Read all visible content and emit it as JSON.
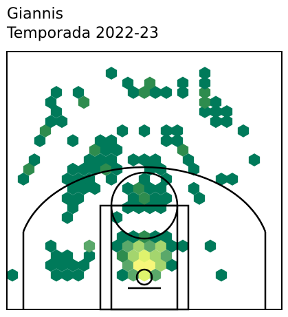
{
  "header": {
    "player": "Giannis",
    "season": "Temporada 2022-23"
  },
  "chart_data": {
    "type": "heatmap",
    "subtype": "hexbin shot chart",
    "title": "Giannis",
    "subtitle": "Temporada 2022-23",
    "xlim": [
      -250,
      250
    ],
    "ylim": [
      -47.5,
      422.5
    ],
    "axes": "hidden",
    "grid": false,
    "legend": "none",
    "colors": {
      "low": "#007a5a",
      "low_mid": "#2e8c4e",
      "mid": "#5aa86a",
      "high_mid": "#a4d56e",
      "high": "#dff36d",
      "max": "#f7f77a",
      "court_line": "#000000"
    },
    "levels": [
      "low",
      "low_mid",
      "mid",
      "high_mid",
      "high",
      "max"
    ],
    "bins": [
      {
        "x": -240,
        "y": 15,
        "level": 0
      },
      {
        "x": -160,
        "y": 15,
        "level": 0
      },
      {
        "x": -140,
        "y": 15,
        "level": 0
      },
      {
        "x": -120,
        "y": 15,
        "level": 0
      },
      {
        "x": -40,
        "y": 15,
        "level": 0
      },
      {
        "x": -20,
        "y": 15,
        "level": 2
      },
      {
        "x": 0,
        "y": 15,
        "level": 4
      },
      {
        "x": 20,
        "y": 15,
        "level": 2
      },
      {
        "x": 140,
        "y": 15,
        "level": 0
      },
      {
        "x": -170,
        "y": 33,
        "level": 0
      },
      {
        "x": -150,
        "y": 33,
        "level": 0
      },
      {
        "x": -130,
        "y": 33,
        "level": 0
      },
      {
        "x": -110,
        "y": 33,
        "level": 0
      },
      {
        "x": -30,
        "y": 33,
        "level": 2
      },
      {
        "x": -10,
        "y": 33,
        "level": 5
      },
      {
        "x": 10,
        "y": 33,
        "level": 5
      },
      {
        "x": 30,
        "y": 33,
        "level": 3
      },
      {
        "x": 50,
        "y": 33,
        "level": 0
      },
      {
        "x": -160,
        "y": 50,
        "level": 0
      },
      {
        "x": -140,
        "y": 50,
        "level": 0
      },
      {
        "x": -100,
        "y": 50,
        "level": 0
      },
      {
        "x": -40,
        "y": 50,
        "level": 1
      },
      {
        "x": -20,
        "y": 50,
        "level": 3
      },
      {
        "x": 0,
        "y": 50,
        "level": 4
      },
      {
        "x": 20,
        "y": 50,
        "level": 3
      },
      {
        "x": 40,
        "y": 50,
        "level": 2
      },
      {
        "x": -170,
        "y": 68,
        "level": 0
      },
      {
        "x": -100,
        "y": 68,
        "level": 2
      },
      {
        "x": -50,
        "y": 68,
        "level": 0
      },
      {
        "x": -30,
        "y": 68,
        "level": 2
      },
      {
        "x": -10,
        "y": 68,
        "level": 3
      },
      {
        "x": 10,
        "y": 68,
        "level": 2
      },
      {
        "x": 30,
        "y": 68,
        "level": 3
      },
      {
        "x": 50,
        "y": 68,
        "level": 0
      },
      {
        "x": 70,
        "y": 68,
        "level": 0
      },
      {
        "x": 120,
        "y": 68,
        "level": 0
      },
      {
        "x": -40,
        "y": 85,
        "level": 0
      },
      {
        "x": -20,
        "y": 85,
        "level": 0
      },
      {
        "x": 0,
        "y": 85,
        "level": 1
      },
      {
        "x": 20,
        "y": 85,
        "level": 0
      },
      {
        "x": 40,
        "y": 85,
        "level": 0
      },
      {
        "x": -140,
        "y": 120,
        "level": 0
      },
      {
        "x": -50,
        "y": 120,
        "level": 0
      },
      {
        "x": -130,
        "y": 138,
        "level": 0
      },
      {
        "x": -30,
        "y": 138,
        "level": 0
      },
      {
        "x": -10,
        "y": 138,
        "level": 0
      },
      {
        "x": 10,
        "y": 138,
        "level": 0
      },
      {
        "x": 30,
        "y": 138,
        "level": 0
      },
      {
        "x": -140,
        "y": 155,
        "level": 0
      },
      {
        "x": -120,
        "y": 155,
        "level": 0
      },
      {
        "x": -20,
        "y": 155,
        "level": 0
      },
      {
        "x": 0,
        "y": 155,
        "level": 1
      },
      {
        "x": 20,
        "y": 155,
        "level": 0
      },
      {
        "x": 40,
        "y": 155,
        "level": 0
      },
      {
        "x": 100,
        "y": 155,
        "level": 0
      },
      {
        "x": -130,
        "y": 173,
        "level": 0
      },
      {
        "x": -110,
        "y": 173,
        "level": 0
      },
      {
        "x": -90,
        "y": 173,
        "level": 0
      },
      {
        "x": -30,
        "y": 173,
        "level": 0
      },
      {
        "x": -10,
        "y": 173,
        "level": 1
      },
      {
        "x": 10,
        "y": 173,
        "level": 0
      },
      {
        "x": 30,
        "y": 173,
        "level": 0
      },
      {
        "x": 90,
        "y": 173,
        "level": 0
      },
      {
        "x": -220,
        "y": 190,
        "level": 0
      },
      {
        "x": -140,
        "y": 190,
        "level": 0
      },
      {
        "x": -120,
        "y": 190,
        "level": 0
      },
      {
        "x": -100,
        "y": 190,
        "level": 0
      },
      {
        "x": -60,
        "y": 190,
        "level": 0
      },
      {
        "x": 0,
        "y": 190,
        "level": 0
      },
      {
        "x": 40,
        "y": 190,
        "level": 0
      },
      {
        "x": 140,
        "y": 190,
        "level": 0
      },
      {
        "x": 160,
        "y": 190,
        "level": 0
      },
      {
        "x": -210,
        "y": 208,
        "level": 1
      },
      {
        "x": -130,
        "y": 208,
        "level": 0
      },
      {
        "x": -110,
        "y": 208,
        "level": 0
      },
      {
        "x": -90,
        "y": 208,
        "level": 0
      },
      {
        "x": -70,
        "y": 208,
        "level": 1
      },
      {
        "x": -50,
        "y": 208,
        "level": 0
      },
      {
        "x": 10,
        "y": 208,
        "level": 0
      },
      {
        "x": 30,
        "y": 208,
        "level": 0
      },
      {
        "x": 90,
        "y": 208,
        "level": 0
      },
      {
        "x": -200,
        "y": 225,
        "level": 0
      },
      {
        "x": -100,
        "y": 225,
        "level": 0
      },
      {
        "x": -80,
        "y": 225,
        "level": 0
      },
      {
        "x": -60,
        "y": 225,
        "level": 0
      },
      {
        "x": -20,
        "y": 225,
        "level": 0
      },
      {
        "x": 0,
        "y": 225,
        "level": 0
      },
      {
        "x": 20,
        "y": 225,
        "level": 0
      },
      {
        "x": 80,
        "y": 225,
        "level": 0
      },
      {
        "x": 200,
        "y": 225,
        "level": 0
      },
      {
        "x": -90,
        "y": 243,
        "level": 1
      },
      {
        "x": -70,
        "y": 243,
        "level": 0
      },
      {
        "x": -50,
        "y": 243,
        "level": 0
      },
      {
        "x": 70,
        "y": 243,
        "level": 1
      },
      {
        "x": -190,
        "y": 260,
        "level": 0
      },
      {
        "x": -130,
        "y": 260,
        "level": 0
      },
      {
        "x": -80,
        "y": 260,
        "level": 0
      },
      {
        "x": -60,
        "y": 260,
        "level": 0
      },
      {
        "x": 40,
        "y": 260,
        "level": 0
      },
      {
        "x": 60,
        "y": 260,
        "level": 0
      },
      {
        "x": -180,
        "y": 278,
        "level": 1
      },
      {
        "x": -40,
        "y": 278,
        "level": 0
      },
      {
        "x": 0,
        "y": 278,
        "level": 0
      },
      {
        "x": 40,
        "y": 278,
        "level": 0
      },
      {
        "x": 60,
        "y": 278,
        "level": 0
      },
      {
        "x": 180,
        "y": 278,
        "level": 0
      },
      {
        "x": -170,
        "y": 295,
        "level": 0
      },
      {
        "x": -150,
        "y": 295,
        "level": 0
      },
      {
        "x": 130,
        "y": 295,
        "level": 0
      },
      {
        "x": 150,
        "y": 295,
        "level": 0
      },
      {
        "x": -160,
        "y": 313,
        "level": 0
      },
      {
        "x": 110,
        "y": 313,
        "level": 0
      },
      {
        "x": 130,
        "y": 313,
        "level": 0
      },
      {
        "x": 150,
        "y": 313,
        "level": 0
      },
      {
        "x": -170,
        "y": 330,
        "level": 0
      },
      {
        "x": -110,
        "y": 330,
        "level": 1
      },
      {
        "x": 110,
        "y": 330,
        "level": 1
      },
      {
        "x": 130,
        "y": 330,
        "level": 0
      },
      {
        "x": -160,
        "y": 348,
        "level": 0
      },
      {
        "x": -120,
        "y": 348,
        "level": 0
      },
      {
        "x": -20,
        "y": 348,
        "level": 0
      },
      {
        "x": 0,
        "y": 348,
        "level": 1
      },
      {
        "x": 20,
        "y": 348,
        "level": 0
      },
      {
        "x": 40,
        "y": 348,
        "level": 0
      },
      {
        "x": 70,
        "y": 348,
        "level": 0
      },
      {
        "x": 110,
        "y": 348,
        "level": 1
      },
      {
        "x": -30,
        "y": 365,
        "level": 0
      },
      {
        "x": 10,
        "y": 365,
        "level": 1
      },
      {
        "x": 70,
        "y": 365,
        "level": 0
      },
      {
        "x": 110,
        "y": 365,
        "level": 0
      },
      {
        "x": -60,
        "y": 383,
        "level": 0
      },
      {
        "x": 110,
        "y": 383,
        "level": 0
      }
    ]
  }
}
